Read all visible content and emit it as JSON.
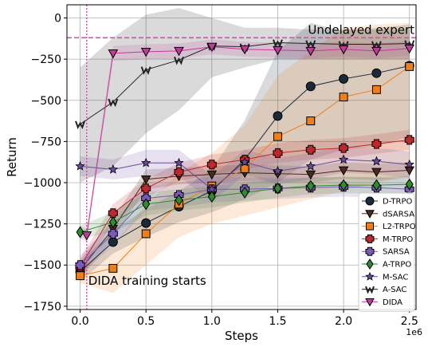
{
  "chart_data": {
    "type": "line",
    "title": "",
    "xlabel": "Steps",
    "ylabel": "Return",
    "x_scale_label": "1e6",
    "xlim": [
      -0.1,
      2.55
    ],
    "ylim": [
      -1770,
      80
    ],
    "xticks": [
      0.0,
      0.5,
      1.0,
      1.5,
      2.0,
      2.5
    ],
    "xtick_labels": [
      "0.0",
      "0.5",
      "1.0",
      "1.5",
      "2.0",
      "2.5"
    ],
    "yticks": [
      0,
      -250,
      -500,
      -750,
      -1000,
      -1250,
      -1500,
      -1750
    ],
    "ytick_labels": [
      "0",
      "−250",
      "−500",
      "−750",
      "−1000",
      "−1250",
      "−1500",
      "−1750"
    ],
    "grid": true,
    "legend_position": "lower-right",
    "hline": {
      "y": -120,
      "label": "Undelayed expert",
      "color": "#d64fa8"
    },
    "vline": {
      "x": 0.05,
      "label": "DIDA training starts",
      "color": "#d64fa8"
    },
    "series": [
      {
        "name": "D-TRPO",
        "color": "#1a2a3a",
        "marker": "circle",
        "x": [
          0,
          0.25,
          0.5,
          0.75,
          1.0,
          1.25,
          1.5,
          1.75,
          2.0,
          2.25,
          2.5
        ],
        "y": [
          -1540,
          -1360,
          -1245,
          -1145,
          -1050,
          -860,
          -595,
          -415,
          -370,
          -335,
          -290
        ],
        "band": [
          [
            -1600,
            -1480
          ],
          [
            -1430,
            -1290
          ],
          [
            -1330,
            -1160
          ],
          [
            -1240,
            -1050
          ],
          [
            -1180,
            -920
          ],
          [
            -1100,
            -620
          ],
          [
            -1000,
            -200
          ],
          [
            -860,
            -30
          ],
          [
            -800,
            -80
          ],
          [
            -780,
            -60
          ],
          [
            -720,
            -40
          ]
        ]
      },
      {
        "name": "dSARSA",
        "color": "#4a2a1e",
        "marker": "triangle-down",
        "x": [
          0,
          0.25,
          0.5,
          0.75,
          1.0,
          1.25,
          1.5,
          1.75,
          2.0,
          2.25,
          2.5
        ],
        "y": [
          -1530,
          -1280,
          -980,
          -960,
          -950,
          -940,
          -945,
          -950,
          -925,
          -935,
          -925
        ],
        "band": [
          [
            -1580,
            -1470
          ],
          [
            -1340,
            -1220
          ],
          [
            -1040,
            -920
          ],
          [
            -1010,
            -910
          ],
          [
            -1000,
            -900
          ],
          [
            -990,
            -890
          ],
          [
            -995,
            -895
          ],
          [
            -1000,
            -900
          ],
          [
            -975,
            -875
          ],
          [
            -985,
            -885
          ],
          [
            -975,
            -875
          ]
        ]
      },
      {
        "name": "L2-TRPO",
        "color": "#f07f1a",
        "marker": "square",
        "x": [
          0,
          0.25,
          0.5,
          0.75,
          1.0,
          1.25,
          1.5,
          1.75,
          2.0,
          2.25,
          2.5
        ],
        "y": [
          -1565,
          -1520,
          -1310,
          -1130,
          -1020,
          -915,
          -720,
          -625,
          -480,
          -435,
          -295
        ],
        "band": [
          [
            -1610,
            -1520
          ],
          [
            -1670,
            -1380
          ],
          [
            -1500,
            -1130
          ],
          [
            -1330,
            -940
          ],
          [
            -1250,
            -820
          ],
          [
            -1200,
            -650
          ],
          [
            -1150,
            -350
          ],
          [
            -1100,
            -200
          ],
          [
            -1050,
            -60
          ],
          [
            -1000,
            -40
          ],
          [
            -960,
            -30
          ]
        ]
      },
      {
        "name": "M-TRPO",
        "color": "#c0272d",
        "marker": "plus",
        "x": [
          0,
          0.25,
          0.5,
          0.75,
          1.0,
          1.25,
          1.5,
          1.75,
          2.0,
          2.25,
          2.5
        ],
        "y": [
          -1510,
          -1185,
          -1035,
          -935,
          -890,
          -860,
          -820,
          -800,
          -790,
          -765,
          -740
        ],
        "band": [
          [
            -1560,
            -1460
          ],
          [
            -1240,
            -1130
          ],
          [
            -1090,
            -980
          ],
          [
            -990,
            -880
          ],
          [
            -950,
            -830
          ],
          [
            -920,
            -800
          ],
          [
            -880,
            -760
          ],
          [
            -860,
            -740
          ],
          [
            -850,
            -730
          ],
          [
            -825,
            -705
          ],
          [
            -800,
            -680
          ]
        ]
      },
      {
        "name": "SARSA",
        "color": "#7b5bb8",
        "marker": "plus",
        "x": [
          0,
          0.25,
          0.5,
          0.75,
          1.0,
          1.25,
          1.5,
          1.75,
          2.0,
          2.25,
          2.5
        ],
        "y": [
          -1500,
          -1310,
          -1095,
          -1075,
          -1040,
          -1040,
          -1035,
          -1030,
          -1025,
          -1030,
          -1040
        ],
        "band": [
          [
            -1560,
            -1440
          ],
          [
            -1380,
            -1240
          ],
          [
            -1170,
            -1020
          ],
          [
            -1150,
            -1000
          ],
          [
            -1120,
            -960
          ],
          [
            -1110,
            -970
          ],
          [
            -1100,
            -970
          ],
          [
            -1090,
            -970
          ],
          [
            -1085,
            -965
          ],
          [
            -1090,
            -970
          ],
          [
            -1100,
            -980
          ]
        ]
      },
      {
        "name": "A-TRPO",
        "color": "#2e8b2e",
        "marker": "diamond",
        "x": [
          0,
          0.25,
          0.5,
          0.75,
          1.0,
          1.25,
          1.5,
          1.75,
          2.0,
          2.25,
          2.5
        ],
        "y": [
          -1300,
          -1240,
          -1130,
          -1105,
          -1085,
          -1060,
          -1035,
          -1020,
          -1015,
          -1015,
          -1010
        ],
        "band": [
          [
            -1340,
            -1260
          ],
          [
            -1300,
            -1180
          ],
          [
            -1200,
            -1060
          ],
          [
            -1170,
            -1040
          ],
          [
            -1150,
            -1020
          ],
          [
            -1120,
            -1000
          ],
          [
            -1090,
            -980
          ],
          [
            -1070,
            -970
          ],
          [
            -1065,
            -965
          ],
          [
            -1065,
            -965
          ],
          [
            -1060,
            -960
          ]
        ]
      },
      {
        "name": "M-SAC",
        "color": "#6a4aa0",
        "marker": "star",
        "x": [
          0,
          0.25,
          0.5,
          0.75,
          1.0,
          1.25,
          1.5,
          1.75,
          2.0,
          2.25,
          2.5
        ],
        "y": [
          -900,
          -920,
          -880,
          -880,
          -1040,
          -875,
          -930,
          -900,
          -860,
          -870,
          -890
        ],
        "band": [
          [
            -960,
            -840
          ],
          [
            -980,
            -860
          ],
          [
            -960,
            -800
          ],
          [
            -960,
            -800
          ],
          [
            -1120,
            -960
          ],
          [
            -950,
            -800
          ],
          [
            -1010,
            -850
          ],
          [
            -980,
            -820
          ],
          [
            -940,
            -780
          ],
          [
            -950,
            -790
          ],
          [
            -970,
            -810
          ]
        ]
      },
      {
        "name": "A-SAC",
        "color": "#222222",
        "marker": "w-mark",
        "x": [
          0,
          0.25,
          0.5,
          0.75,
          1.0,
          1.25,
          1.5,
          1.75,
          2.0,
          2.25,
          2.5
        ],
        "y": [
          -645,
          -510,
          -315,
          -255,
          -170,
          -175,
          -150,
          -155,
          -160,
          -160,
          -155
        ],
        "band": [
          [
            -1000,
            -300
          ],
          [
            -900,
            -120
          ],
          [
            -700,
            20
          ],
          [
            -560,
            60
          ],
          [
            -360,
            0
          ],
          [
            -300,
            -60
          ],
          [
            -250,
            -60
          ],
          [
            -250,
            -70
          ],
          [
            -250,
            -70
          ],
          [
            -250,
            -70
          ],
          [
            -250,
            -70
          ]
        ]
      },
      {
        "name": "DIDA",
        "color": "#c43a9a",
        "marker": "triangle-down",
        "x": [
          0,
          0.05,
          0.25,
          0.5,
          0.75,
          1.0,
          1.25,
          1.5,
          1.75,
          2.0,
          2.25,
          2.5
        ],
        "y": [
          -1300,
          -1320,
          -215,
          -205,
          -200,
          -175,
          -190,
          -195,
          -200,
          -190,
          -200,
          -185
        ],
        "band": [
          [
            -1340,
            -1260
          ],
          [
            -1360,
            -1280
          ],
          [
            -260,
            -170
          ],
          [
            -250,
            -160
          ],
          [
            -245,
            -155
          ],
          [
            -220,
            -130
          ],
          [
            -235,
            -145
          ],
          [
            -240,
            -150
          ],
          [
            -245,
            -155
          ],
          [
            -235,
            -145
          ],
          [
            -245,
            -155
          ],
          [
            -230,
            -140
          ]
        ]
      }
    ]
  }
}
